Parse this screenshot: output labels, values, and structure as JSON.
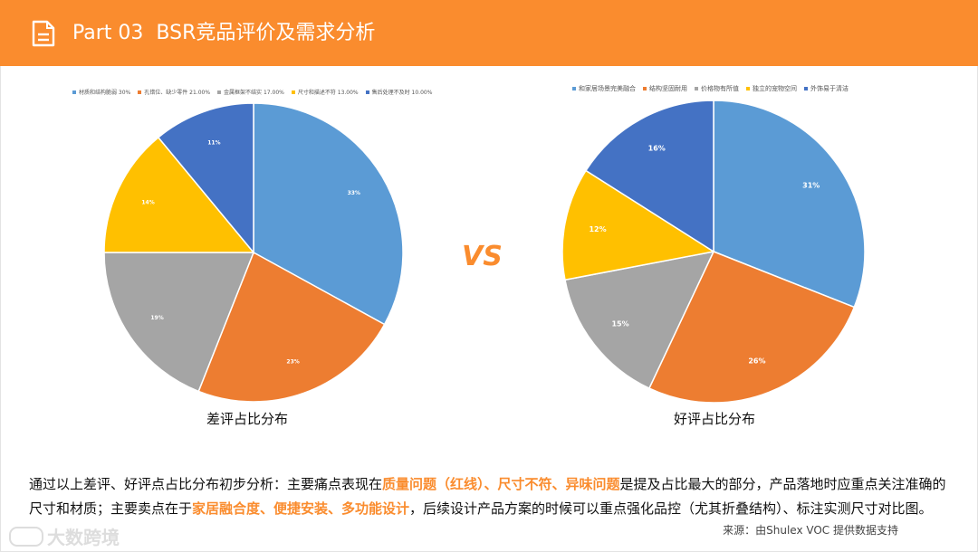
{
  "header": {
    "title": "Part 03  BSR竞品评价及需求分析",
    "icon": "document-icon"
  },
  "vs_label": "VS",
  "chart_data": [
    {
      "type": "pie",
      "title": "差评占比分布",
      "legend": [
        "材质和结构脆弱 30%",
        "孔错位、缺少零件 21.00%",
        "金属框架不结实 17.00%",
        "尺寸和描述不符 13.00%",
        "售后处理不及时 10.00%"
      ],
      "categories": [
        "材质和结构脆弱",
        "孔错位、缺少零件",
        "金属框架不结实",
        "尺寸和描述不符",
        "售后处理不及时"
      ],
      "values": [
        33,
        23,
        19,
        14,
        11
      ],
      "value_labels": [
        "33%",
        "23%",
        "19%",
        "14%",
        "11%"
      ],
      "colors": [
        "#5B9BD5",
        "#ED7D31",
        "#A5A5A5",
        "#FFC000",
        "#4472C4"
      ]
    },
    {
      "type": "pie",
      "title": "好评占比分布",
      "legend": [
        "和家居场景完美融合",
        "结构坚固耐用",
        "价格物有所值",
        "独立的宠物空间",
        "外饰易于清洁"
      ],
      "categories": [
        "和家居场景完美融合",
        "结构坚固耐用",
        "价格物有所值",
        "独立的宠物空间",
        "外饰易于清洁"
      ],
      "values": [
        31,
        26,
        15,
        12,
        16
      ],
      "value_labels": [
        "31%",
        "26%",
        "15%",
        "12%",
        "16%"
      ],
      "colors": [
        "#5B9BD5",
        "#ED7D31",
        "#A5A5A5",
        "#FFC000",
        "#4472C4"
      ]
    }
  ],
  "summary": {
    "p1": "通过以上差评、好评点占比分布初步分析：主要痛点表现在",
    "h1": "质量问题（红线）、尺寸不符、异味问题",
    "p2": "是提及占比最大的部分，产品落地时应重点关注准确的尺寸和材质；主要卖点在于",
    "h2": "家居融合度、便捷安装、多功能设计",
    "p3": "，后续设计产品方案的时候可以重点强化品控（尤其折叠结构）、标注实测尺寸对比图。"
  },
  "source": "来源：由Shulex VOC 提供数据支持",
  "watermark": "大数跨境"
}
